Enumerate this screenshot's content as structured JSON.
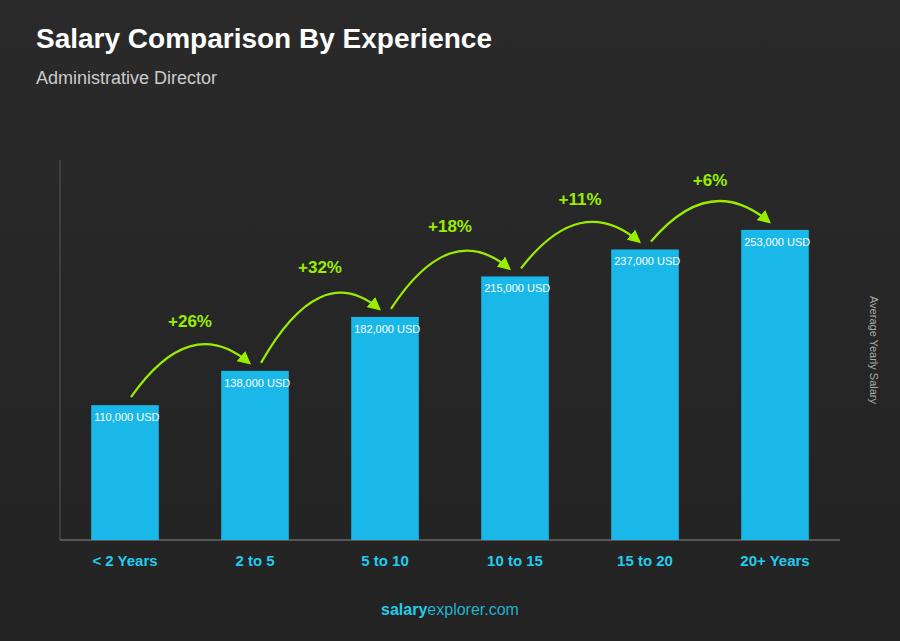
{
  "chart_data": {
    "type": "bar",
    "title": "Salary Comparison By Experience",
    "subtitle": "Administrative Director",
    "ylabel": "Average Yearly Salary",
    "footer": [
      "salary",
      "explorer.com"
    ],
    "categories": [
      "< 2 Years",
      "2 to 5",
      "5 to 10",
      "10 to 15",
      "15 to 20",
      "20+ Years"
    ],
    "values": [
      110000,
      138000,
      182000,
      215000,
      237000,
      253000
    ],
    "value_labels": [
      "110,000 USD",
      "138,000 USD",
      "182,000 USD",
      "215,000 USD",
      "237,000 USD",
      "253,000 USD"
    ],
    "annotations": [
      "+26%",
      "+32%",
      "+18%",
      "+11%",
      "+6%"
    ],
    "color": "#1ab8e8",
    "ylim": [
      0,
      310000
    ],
    "grid": false,
    "data_labels": true,
    "tick_labels": "x"
  }
}
